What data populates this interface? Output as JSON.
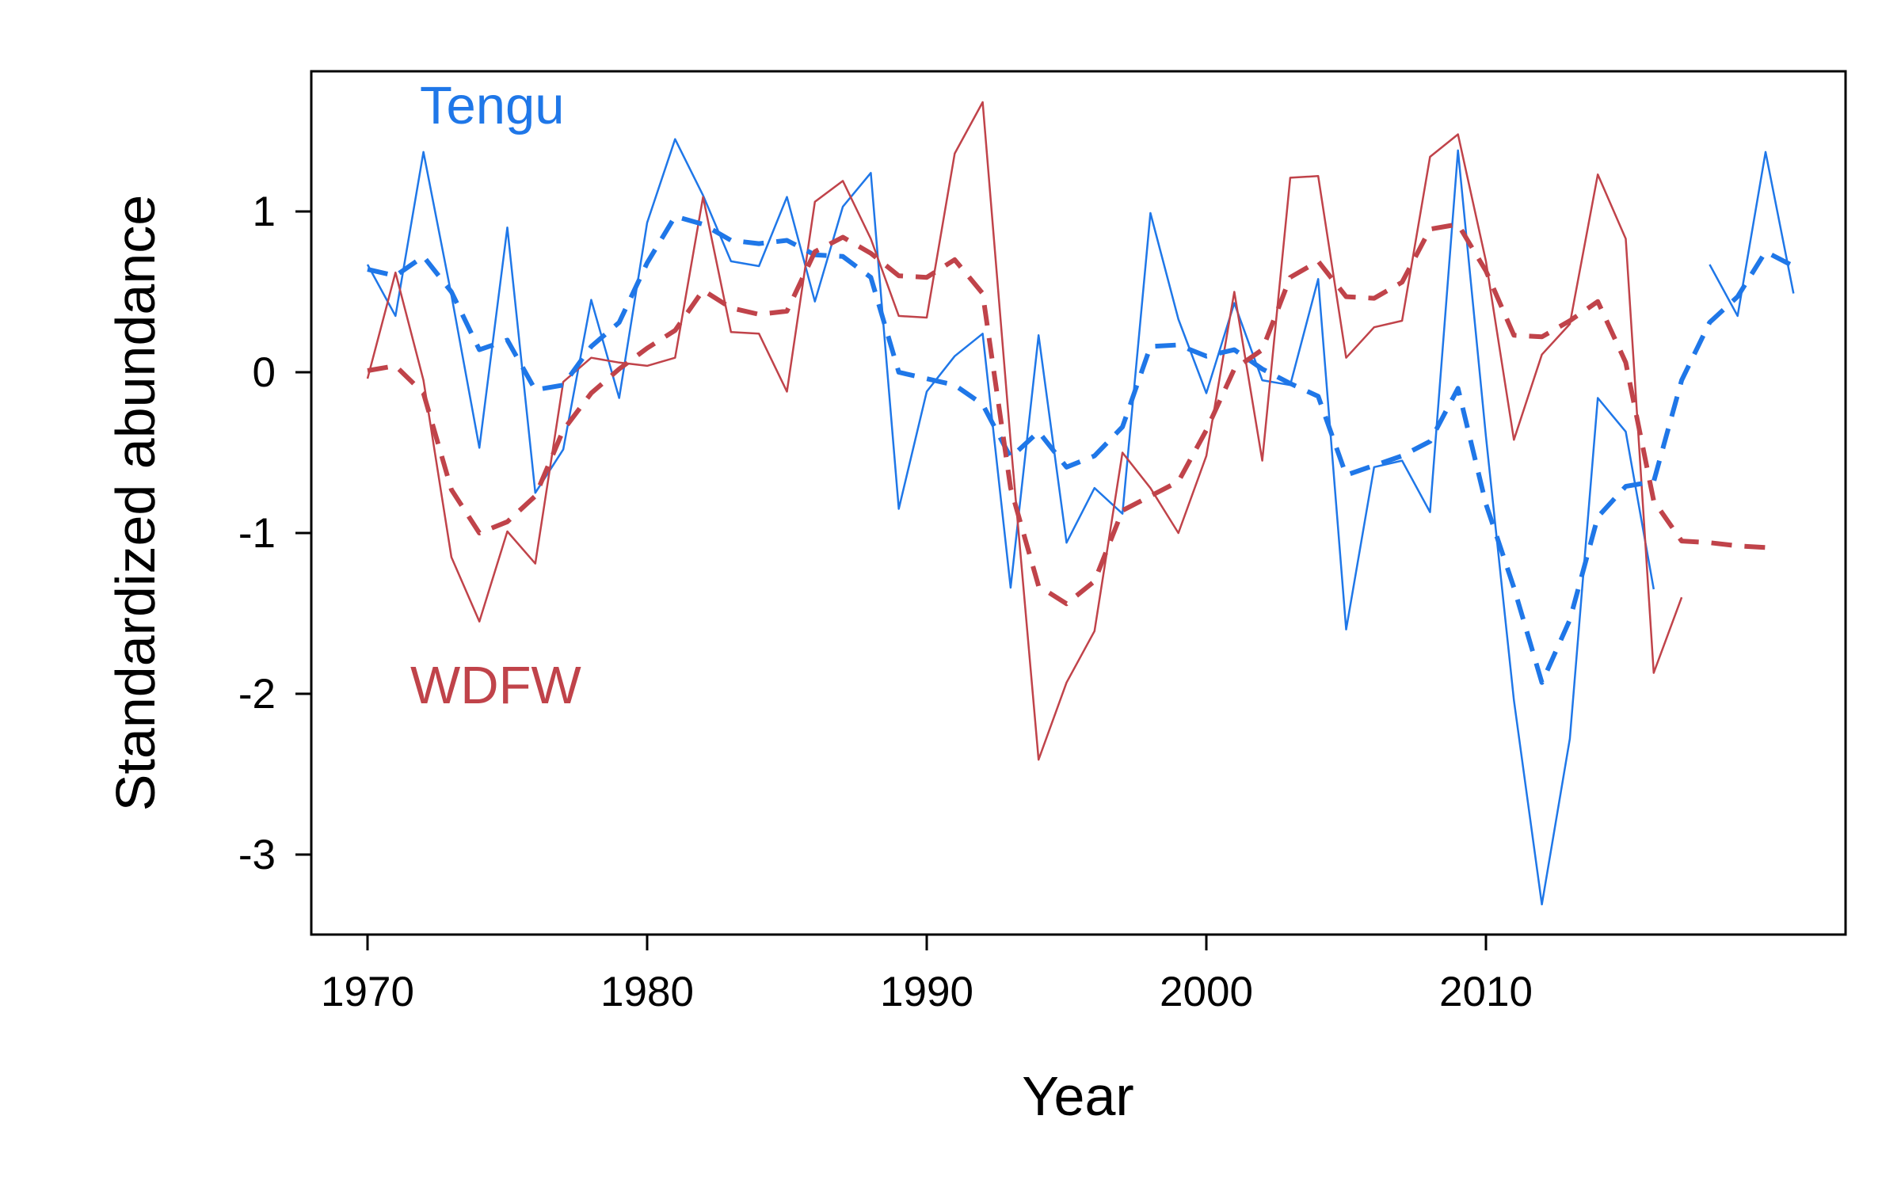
{
  "chart_data": {
    "type": "line",
    "title": "",
    "xlabel": "Year",
    "ylabel": "Standardized abundance",
    "xlim": [
      1968,
      2021
    ],
    "ylim": [
      -3.5,
      1.9
    ],
    "x_ticks": [
      1970,
      1980,
      1990,
      2000,
      2010
    ],
    "y_ticks": [
      1,
      0,
      -1,
      -2,
      -3
    ],
    "grid": false,
    "colors": {
      "tengu": "#1f77e8",
      "wdfw": "#c0434a"
    },
    "labels": {
      "tengu": "Tengu",
      "wdfw": "WDFW"
    },
    "series": [
      {
        "name": "Tengu",
        "style": "solid",
        "color": "#1f77e8",
        "x": [
          1970,
          1971,
          1972,
          1973,
          1974,
          1975,
          1976,
          1977,
          1978,
          1979,
          1980,
          1981,
          1982,
          1983,
          1984,
          1985,
          1986,
          1987,
          1988,
          1989,
          1990,
          1991,
          1992,
          1993,
          1994,
          1995,
          1996,
          1997,
          1998,
          1999,
          2000,
          2001,
          2002,
          2003,
          2004,
          2005,
          2006,
          2007,
          2008,
          2009,
          2010,
          2011,
          2012,
          2013,
          2014,
          2015,
          2016,
          2017,
          2018,
          2019,
          2020,
          2021
        ],
        "values": [
          0.67,
          0.35,
          1.37,
          0.48,
          -0.47,
          0.9,
          -0.75,
          -0.48,
          0.45,
          -0.16,
          0.93,
          1.45,
          1.1,
          0.69,
          0.66,
          1.09,
          0.44,
          1.03,
          1.24,
          -0.85,
          -0.12,
          0.1,
          0.24,
          -1.34,
          0.23,
          -1.06,
          -0.72,
          -0.88,
          0.99,
          0.33,
          -0.13,
          0.43,
          -0.05,
          -0.08,
          0.58,
          -1.6,
          -0.59,
          -0.55,
          -0.87,
          1.38,
          -0.4,
          -2.04,
          -3.31,
          -2.28,
          -0.16,
          -0.37,
          -1.35,
          null,
          0.67,
          0.35,
          1.37,
          0.49
        ]
      },
      {
        "name": "WDFW",
        "style": "solid",
        "color": "#c0434a",
        "x": [
          1970,
          1971,
          1972,
          1973,
          1974,
          1975,
          1976,
          1977,
          1978,
          1979,
          1980,
          1981,
          1982,
          1983,
          1984,
          1985,
          1986,
          1987,
          1988,
          1989,
          1990,
          1991,
          1992,
          1993,
          1994,
          1995,
          1996,
          1997,
          1998,
          1999,
          2000,
          2001,
          2002,
          2003,
          2004,
          2005,
          2006,
          2007,
          2008,
          2009,
          2010,
          2011,
          2012,
          2013,
          2014,
          2015,
          2016,
          2017
        ],
        "values": [
          -0.04,
          0.62,
          -0.05,
          -1.15,
          -1.55,
          -0.99,
          -1.19,
          -0.06,
          0.09,
          0.06,
          0.04,
          0.09,
          1.09,
          0.25,
          0.24,
          -0.12,
          1.06,
          1.19,
          0.83,
          0.35,
          0.34,
          1.36,
          1.68,
          -0.43,
          -2.41,
          -1.93,
          -1.61,
          -0.5,
          -0.72,
          -1.0,
          -0.52,
          0.5,
          -0.55,
          1.21,
          1.22,
          0.09,
          0.28,
          0.32,
          1.34,
          1.48,
          0.69,
          -0.42,
          0.11,
          0.3,
          1.23,
          0.83,
          -1.87,
          -1.4
        ]
      },
      {
        "name": "Tengu smoothed",
        "style": "dashed",
        "color": "#1f77e8",
        "x": [
          1970,
          1971,
          1972,
          1973,
          1974,
          1975,
          1976,
          1977,
          1978,
          1979,
          1980,
          1981,
          1982,
          1983,
          1984,
          1985,
          1986,
          1987,
          1988,
          1989,
          1990,
          1991,
          1992,
          1993,
          1994,
          1995,
          1996,
          1997,
          1998,
          1999,
          2000,
          2001,
          2002,
          2003,
          2004,
          2005,
          2006,
          2007,
          2008,
          2009,
          2010,
          2011,
          2012,
          2013,
          2014,
          2015,
          2016,
          2017,
          2018,
          2019,
          2020,
          2021
        ],
        "values": [
          0.64,
          0.6,
          0.72,
          0.5,
          0.14,
          0.2,
          -0.11,
          -0.08,
          0.16,
          0.31,
          0.68,
          0.97,
          0.92,
          0.82,
          0.8,
          0.82,
          0.73,
          0.72,
          0.59,
          0.0,
          -0.04,
          -0.08,
          -0.2,
          -0.53,
          -0.37,
          -0.59,
          -0.52,
          -0.34,
          0.16,
          0.17,
          0.1,
          0.14,
          0.02,
          -0.07,
          -0.15,
          -0.64,
          -0.58,
          -0.52,
          -0.43,
          -0.1,
          -0.82,
          -1.34,
          -1.93,
          -1.54,
          -0.9,
          -0.71,
          -0.68,
          -0.05,
          0.31,
          0.47,
          0.75,
          0.66
        ]
      },
      {
        "name": "WDFW smoothed",
        "style": "dashed",
        "color": "#c0434a",
        "x": [
          1970,
          1971,
          1972,
          1973,
          1974,
          1975,
          1976,
          1977,
          1978,
          1979,
          1980,
          1981,
          1982,
          1983,
          1984,
          1985,
          1986,
          1987,
          1988,
          1989,
          1990,
          1991,
          1992,
          1993,
          1994,
          1995,
          1996,
          1997,
          1998,
          1999,
          2000,
          2001,
          2002,
          2003,
          2004,
          2005,
          2006,
          2007,
          2008,
          2009,
          2010,
          2011,
          2012,
          2013,
          2014,
          2015,
          2016,
          2017,
          2018,
          2019,
          2020
        ],
        "values": [
          0.01,
          0.04,
          -0.13,
          -0.73,
          -1.0,
          -0.93,
          -0.77,
          -0.36,
          -0.13,
          0.02,
          0.15,
          0.26,
          0.51,
          0.4,
          0.36,
          0.38,
          0.75,
          0.84,
          0.74,
          0.6,
          0.59,
          0.7,
          0.49,
          -0.72,
          -1.33,
          -1.44,
          -1.3,
          -0.86,
          -0.77,
          -0.68,
          -0.36,
          0.02,
          0.14,
          0.59,
          0.69,
          0.47,
          0.46,
          0.56,
          0.89,
          0.92,
          0.63,
          0.23,
          0.22,
          0.32,
          0.44,
          0.06,
          -0.8,
          -1.05,
          -1.06,
          -1.08,
          -1.09
        ]
      }
    ]
  }
}
